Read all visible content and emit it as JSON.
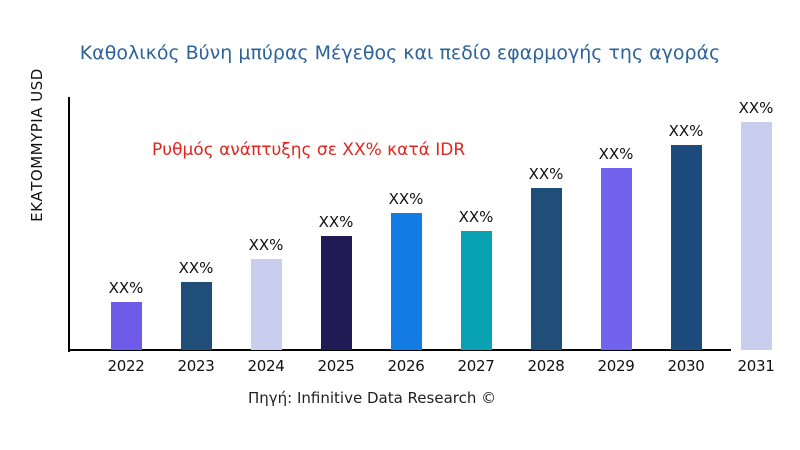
{
  "title": {
    "text": "Καθολικός Βύνη μπύρας Μέγεθος και πεδίο εφαρμογής της αγοράς",
    "color": "#2e6399"
  },
  "axes": {
    "y_label": "ΕΚΑΤΟΜΜΥΡΙΑ USD"
  },
  "annotation": {
    "text": "Ρυθμός ανάπτυξης σε XX% κατά IDR",
    "color": "#e2241d"
  },
  "source": {
    "text": "Πηγή: Infinitive Data Research ©"
  },
  "chart_data": {
    "type": "bar",
    "title": "Καθολικός Βύνη μπύρας Μέγεθος και πεδίο εφαρμογής της αγοράς",
    "xlabel": "",
    "ylabel": "ΕΚΑΤΟΜΜΥΡΙΑ USD",
    "categories": [
      "2022",
      "2023",
      "2024",
      "2025",
      "2026",
      "2027",
      "2028",
      "2029",
      "2030",
      "2031"
    ],
    "values": [
      21,
      30,
      40,
      50,
      60,
      52,
      71,
      80,
      90,
      100
    ],
    "bar_labels": [
      "XX%",
      "XX%",
      "XX%",
      "XX%",
      "XX%",
      "XX%",
      "XX%",
      "XX%",
      "XX%",
      "XX%"
    ],
    "bar_colors": [
      "#6e5ce8",
      "#1f4e79",
      "#c9cdee",
      "#211a55",
      "#127ce4",
      "#09a2b2",
      "#1f4e79",
      "#7163ed",
      "#1e4b7e",
      "#c9cdee"
    ],
    "annotation": "Ρυθμός ανάπτυξης σε XX% κατά IDR",
    "legend": "none",
    "grid": false,
    "ylim": [
      0,
      100
    ]
  }
}
